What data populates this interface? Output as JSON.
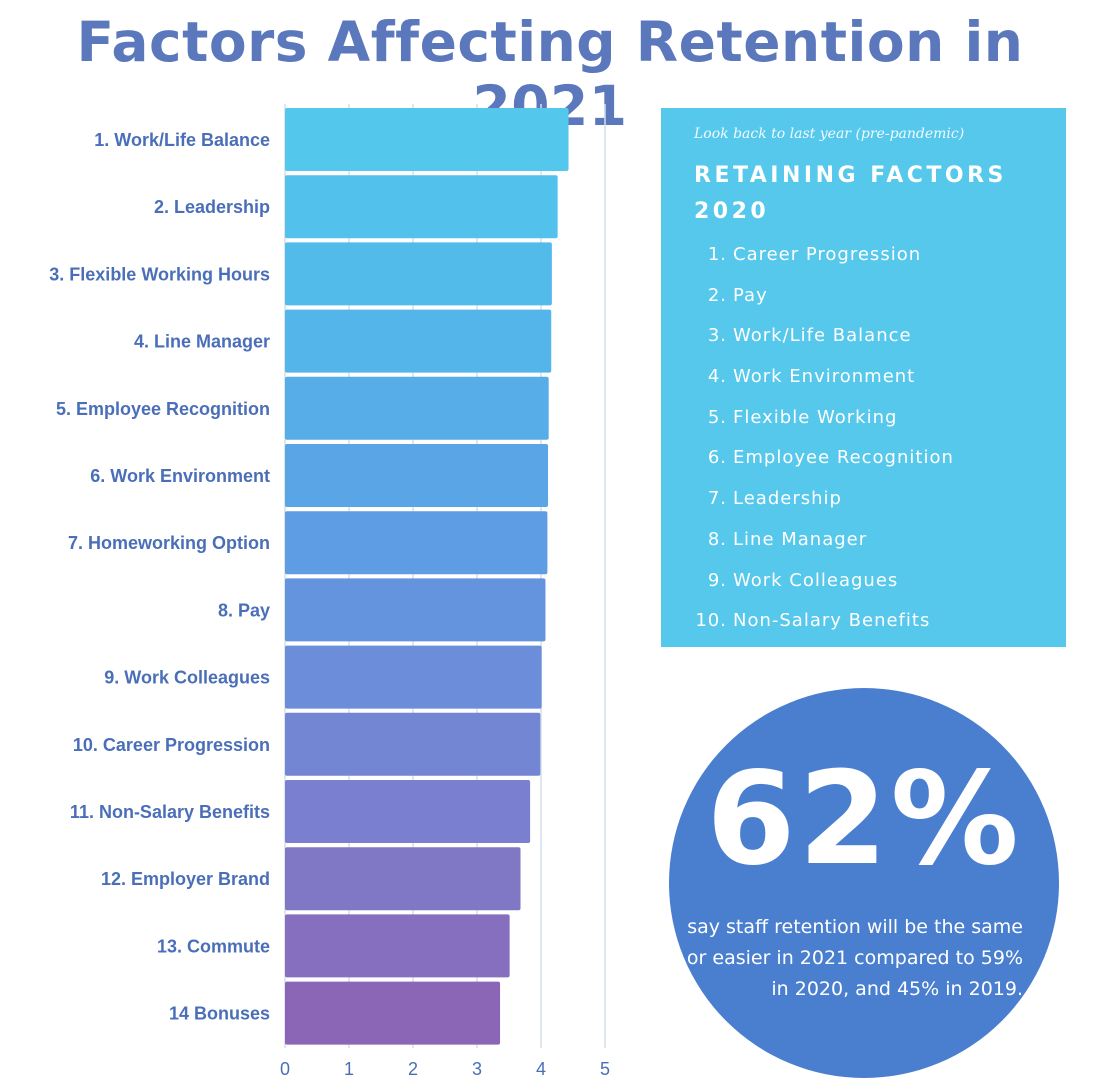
{
  "title": "Factors Affecting Retention in 2021",
  "chart_data": {
    "type": "bar",
    "orientation": "horizontal",
    "categories": [
      "1. Work/Life Balance",
      "2. Leadership",
      "3. Flexible Working Hours",
      "4. Line Manager",
      "5. Employee Recognition",
      "6. Work Environment",
      "7. Homeworking Option",
      "8. Pay",
      "9. Work Colleagues",
      "10. Career Progression",
      "11. Non-Salary Benefits",
      "12. Employer Brand",
      "13. Commute",
      "14 Bonuses"
    ],
    "values": [
      4.43,
      4.26,
      4.17,
      4.16,
      4.12,
      4.11,
      4.1,
      4.07,
      4.01,
      3.99,
      3.83,
      3.68,
      3.51,
      3.36
    ],
    "xlim": [
      0,
      5
    ],
    "xticks": [
      "0",
      "1",
      "2",
      "3",
      "4",
      "5"
    ],
    "grid": "vertical",
    "colors": [
      "#54c8ec",
      "#52c2ec",
      "#52bbea",
      "#53b5e9",
      "#56ade8",
      "#5aa5e5",
      "#5e9ce3",
      "#6594de",
      "#6c8dda",
      "#7386d4",
      "#7a7fcf",
      "#8078c4",
      "#856fbe",
      "#8c66b6"
    ]
  },
  "panel": {
    "subtitle": "Look back to last year (pre-pandemic)",
    "heading": "RETAINING FACTORS 2020",
    "items": [
      {
        "num": "1.",
        "label": "Career Progression"
      },
      {
        "num": "2.",
        "label": "Pay"
      },
      {
        "num": "3.",
        "label": "Work/Life Balance"
      },
      {
        "num": "4.",
        "label": "Work Environment"
      },
      {
        "num": "5.",
        "label": "Flexible Working"
      },
      {
        "num": "6.",
        "label": "Employee Recognition"
      },
      {
        "num": "7.",
        "label": "Leadership"
      },
      {
        "num": "8.",
        "label": "Line Manager"
      },
      {
        "num": "9.",
        "label": "Work Colleagues"
      },
      {
        "num": "10.",
        "label": "Non-Salary Benefits"
      }
    ],
    "background": "#55c8ec"
  },
  "stat": {
    "value": "62%",
    "text": "say staff retention will be the same or easier in 2021 compared to 59% in 2020, and 45% in 2019.",
    "circle_color": "#4a7fd0"
  }
}
